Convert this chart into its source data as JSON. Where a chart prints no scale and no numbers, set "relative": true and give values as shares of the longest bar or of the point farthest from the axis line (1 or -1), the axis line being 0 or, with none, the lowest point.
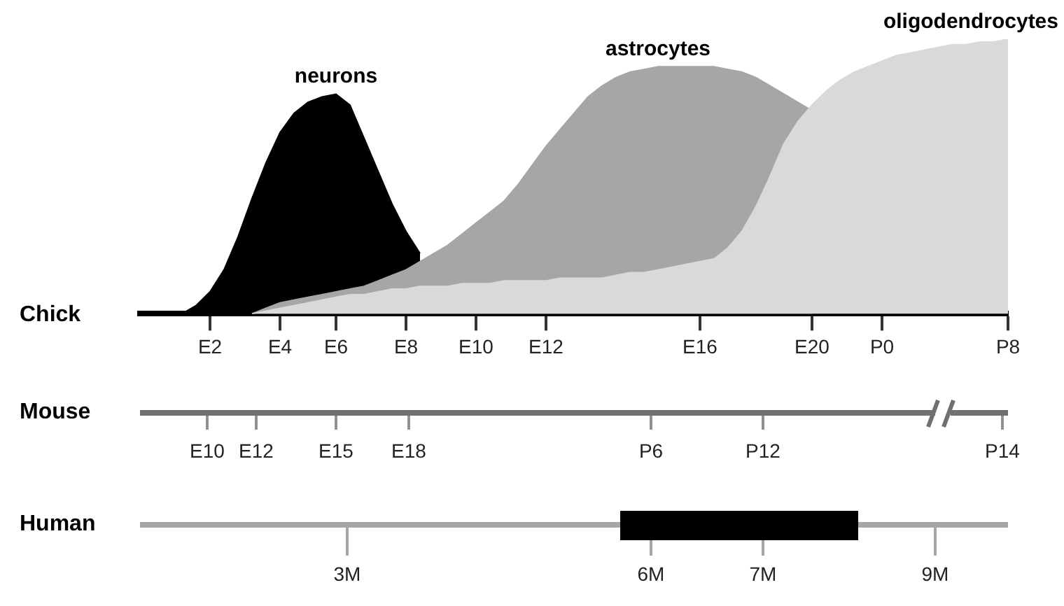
{
  "chart_data": {
    "type": "area",
    "relative": true,
    "grid": false,
    "legend": false,
    "xlabel": "Chick",
    "categories": [
      null,
      null,
      null,
      null,
      null,
      "E2",
      null,
      null,
      null,
      null,
      "E4",
      null,
      null,
      null,
      "E6",
      null,
      null,
      null,
      null,
      "E8",
      null,
      null,
      null,
      null,
      "E10",
      null,
      null,
      null,
      null,
      "E12",
      null,
      null,
      null,
      null,
      null,
      null,
      null,
      null,
      null,
      null,
      "E16",
      null,
      null,
      null,
      null,
      null,
      null,
      null,
      "E20",
      null,
      null,
      null,
      null,
      "P0",
      null,
      null,
      null,
      null,
      null,
      null,
      null,
      null,
      "P8"
    ],
    "annotations": [
      "Mouse",
      "E10",
      "E12",
      "E15",
      "E18",
      "P6",
      "P12",
      "P14",
      "Human",
      "3M",
      "6M",
      "7M",
      "9M"
    ],
    "series": [
      {
        "name": "neurons",
        "color": "#000000",
        "values": [
          null,
          null,
          null,
          0,
          0.03,
          0.08,
          0.16,
          0.28,
          0.42,
          0.55,
          0.66,
          0.73,
          0.77,
          0.79,
          0.8,
          0.76,
          0.64,
          0.52,
          0.4,
          0.3,
          0.22,
          null,
          null,
          null,
          null,
          null,
          null,
          null,
          null,
          null,
          null,
          null,
          null,
          null,
          null,
          null,
          null,
          null,
          null,
          null,
          null,
          null,
          null,
          null,
          null,
          null,
          null,
          null,
          null,
          null,
          null,
          null,
          null,
          null,
          null,
          null,
          null,
          null,
          null,
          null,
          null,
          null,
          null
        ]
      },
      {
        "name": "astrocytes",
        "color": "#a6a6a6",
        "values": [
          null,
          null,
          null,
          null,
          null,
          null,
          null,
          null,
          0,
          0.02,
          0.04,
          0.05,
          0.06,
          0.07,
          0.08,
          0.09,
          0.1,
          0.12,
          0.14,
          0.16,
          0.19,
          0.22,
          0.25,
          0.29,
          0.33,
          0.37,
          0.41,
          0.47,
          0.54,
          0.61,
          0.67,
          0.73,
          0.79,
          0.83,
          0.86,
          0.88,
          0.89,
          0.9,
          0.9,
          0.9,
          0.9,
          0.9,
          0.89,
          0.88,
          0.86,
          0.83,
          0.8,
          0.77,
          0.74,
          null,
          null,
          null,
          null,
          null,
          null,
          null,
          null,
          null,
          null,
          null,
          null,
          null,
          null
        ]
      },
      {
        "name": "oligodendrocytes",
        "color": "#d9d9d9",
        "values": [
          null,
          null,
          null,
          null,
          null,
          null,
          null,
          null,
          0,
          0.01,
          0.02,
          0.03,
          0.04,
          0.05,
          0.06,
          0.07,
          0.07,
          0.08,
          0.09,
          0.09,
          0.1,
          0.1,
          0.1,
          0.11,
          0.11,
          0.11,
          0.12,
          0.12,
          0.12,
          0.12,
          0.13,
          0.13,
          0.13,
          0.13,
          0.14,
          0.15,
          0.15,
          0.16,
          0.17,
          0.18,
          0.19,
          0.2,
          0.24,
          0.3,
          0.39,
          0.5,
          0.62,
          0.7,
          0.76,
          0.81,
          0.85,
          0.88,
          0.9,
          0.92,
          0.94,
          0.95,
          0.96,
          0.97,
          0.98,
          0.98,
          0.99,
          0.99,
          1
        ]
      }
    ]
  }
}
